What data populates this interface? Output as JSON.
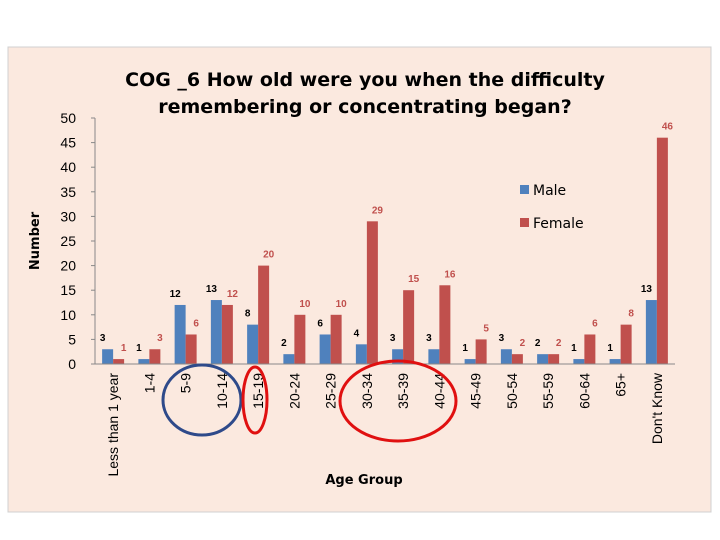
{
  "chart_data": {
    "type": "bar",
    "title_lines": [
      "COG _6 How old were you when the difficulty",
      "remembering or concentrating began?"
    ],
    "xlabel": "Age Group",
    "ylabel": "Number",
    "ylim": [
      0,
      50
    ],
    "yticks": [
      0,
      5,
      10,
      15,
      20,
      25,
      30,
      35,
      40,
      45,
      50
    ],
    "categories": [
      "Less than 1 year",
      "1-4",
      "5-9",
      "10-14",
      "15-19",
      "20-24",
      "25-29",
      "30-34",
      "35-39",
      "40-44",
      "45-49",
      "50-54",
      "55-59",
      "60-64",
      "65+",
      "Don't Know"
    ],
    "series": [
      {
        "name": "Male",
        "color": "#4f81bd",
        "label_color": "#000000",
        "values": [
          3,
          1,
          12,
          13,
          8,
          2,
          6,
          4,
          3,
          3,
          1,
          3,
          2,
          1,
          1,
          13
        ]
      },
      {
        "name": "Female",
        "color": "#c0504d",
        "label_color": "#c0504d",
        "values": [
          1,
          3,
          6,
          12,
          20,
          10,
          10,
          29,
          15,
          16,
          5,
          2,
          2,
          6,
          8,
          46
        ]
      }
    ],
    "legend_position": "right",
    "grid": false,
    "annotations": [
      {
        "type": "ellipse",
        "color": "#2e4a8a",
        "categories": [
          "5-9",
          "10-14"
        ]
      },
      {
        "type": "ellipse",
        "color": "#e01010",
        "categories": [
          "15-19"
        ]
      },
      {
        "type": "ellipse",
        "color": "#e01010",
        "categories": [
          "30-34",
          "35-39",
          "40-44"
        ]
      }
    ],
    "colors": {
      "plot_background": "#fbe9df",
      "frame": "#d0d0d0"
    }
  }
}
